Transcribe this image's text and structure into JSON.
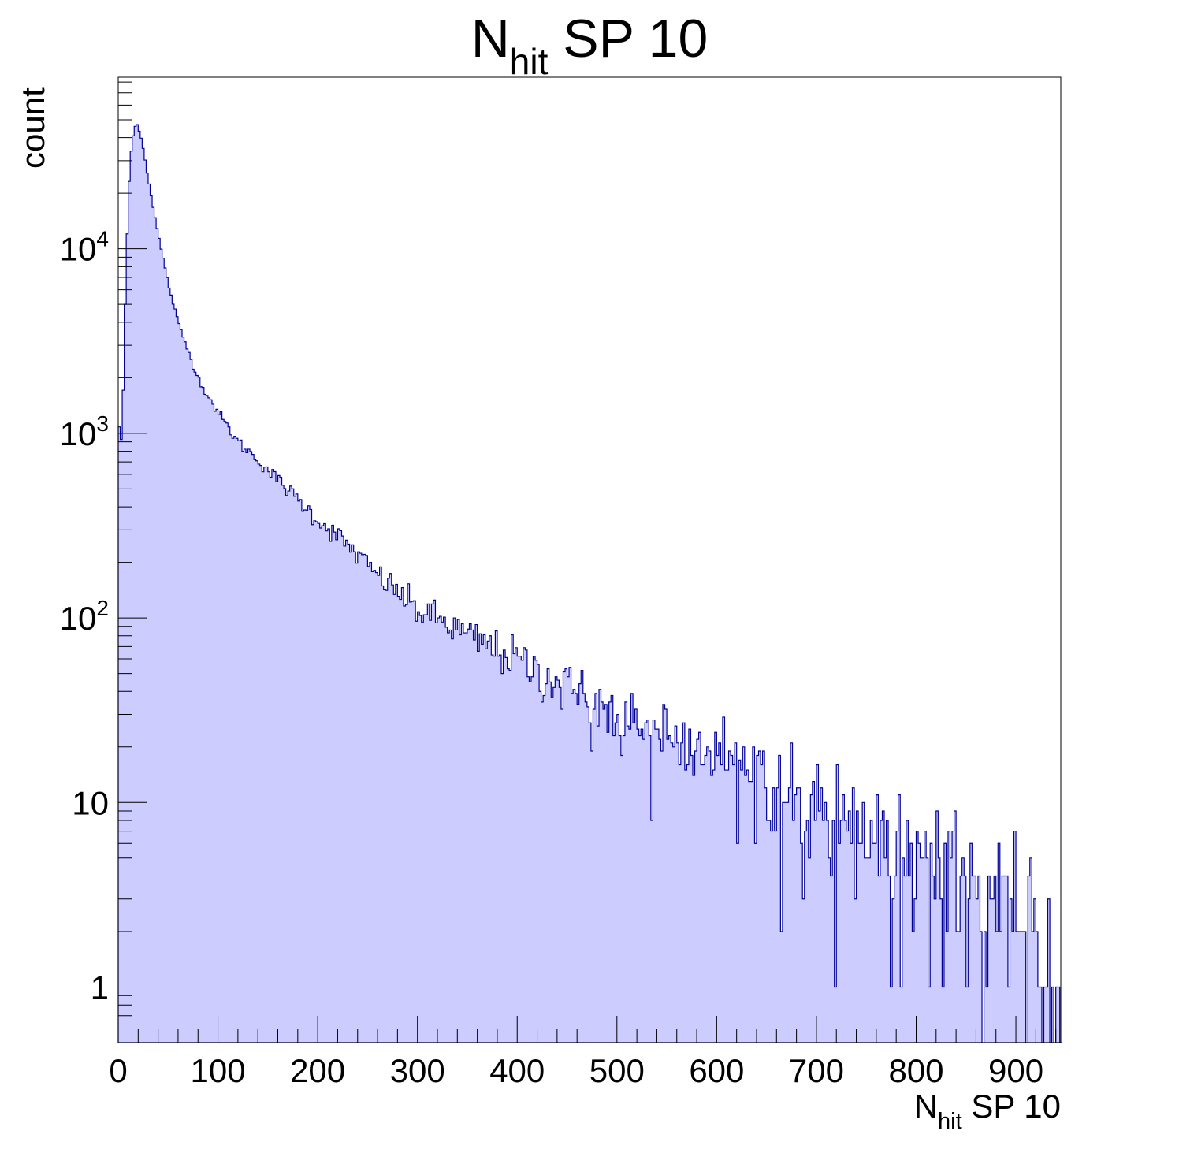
{
  "chart_data": {
    "type": "histogram",
    "title": {
      "base": "N",
      "sub": "hit",
      "rest": " SP 10"
    },
    "xlabel": {
      "base": "N",
      "sub": "hit",
      "rest": " SP 10"
    },
    "ylabel": "count",
    "yscale": "log",
    "xlim": [
      0,
      945
    ],
    "ylim": [
      0.5,
      85000
    ],
    "bin_width": 2,
    "x_ticks": [
      0,
      100,
      200,
      300,
      400,
      500,
      600,
      700,
      800,
      900
    ],
    "y_ticks": [
      {
        "value": 1,
        "label": "1",
        "exp": ""
      },
      {
        "value": 10,
        "label": "10",
        "exp": ""
      },
      {
        "value": 100,
        "label": "10",
        "exp": "2"
      },
      {
        "value": 1000,
        "label": "10",
        "exp": "3"
      },
      {
        "value": 10000,
        "label": "10",
        "exp": "4"
      }
    ],
    "colors": {
      "fill": "#ccccff",
      "line": "#000099",
      "axis": "#000000"
    },
    "histogram_profile": {
      "description": "counts per bin, piecewise log-linear envelope read from the plot",
      "points": [
        [
          0,
          1500
        ],
        [
          2,
          800
        ],
        [
          4,
          1000
        ],
        [
          6,
          3000
        ],
        [
          8,
          8000
        ],
        [
          10,
          18000
        ],
        [
          12,
          30000
        ],
        [
          14,
          38000
        ],
        [
          16,
          44000
        ],
        [
          18,
          48000
        ],
        [
          20,
          46000
        ],
        [
          24,
          38000
        ],
        [
          30,
          24000
        ],
        [
          40,
          12000
        ],
        [
          50,
          6500
        ],
        [
          60,
          4000
        ],
        [
          70,
          2800
        ],
        [
          80,
          2000
        ],
        [
          90,
          1600
        ],
        [
          100,
          1300
        ],
        [
          120,
          900
        ],
        [
          140,
          720
        ],
        [
          160,
          560
        ],
        [
          180,
          440
        ],
        [
          200,
          340
        ],
        [
          220,
          280
        ],
        [
          240,
          220
        ],
        [
          260,
          170
        ],
        [
          280,
          140
        ],
        [
          300,
          110
        ],
        [
          320,
          100
        ],
        [
          350,
          80
        ],
        [
          400,
          60
        ],
        [
          450,
          42
        ],
        [
          500,
          30
        ],
        [
          550,
          24
        ],
        [
          600,
          17
        ],
        [
          650,
          13
        ],
        [
          700,
          10
        ],
        [
          750,
          7
        ],
        [
          800,
          5
        ],
        [
          850,
          4
        ],
        [
          900,
          3
        ],
        [
          945,
          1
        ]
      ]
    },
    "notable_bins": [
      {
        "x": 534,
        "y": 8
      },
      {
        "x": 620,
        "y": 6
      },
      {
        "x": 664,
        "y": 2
      },
      {
        "x": 686,
        "y": 3
      },
      {
        "x": 718,
        "y": 1
      },
      {
        "x": 826,
        "y": 1
      },
      {
        "x": 850,
        "y": 1
      },
      {
        "x": 870,
        "y": 1
      },
      {
        "x": 920,
        "y": 2
      }
    ]
  }
}
